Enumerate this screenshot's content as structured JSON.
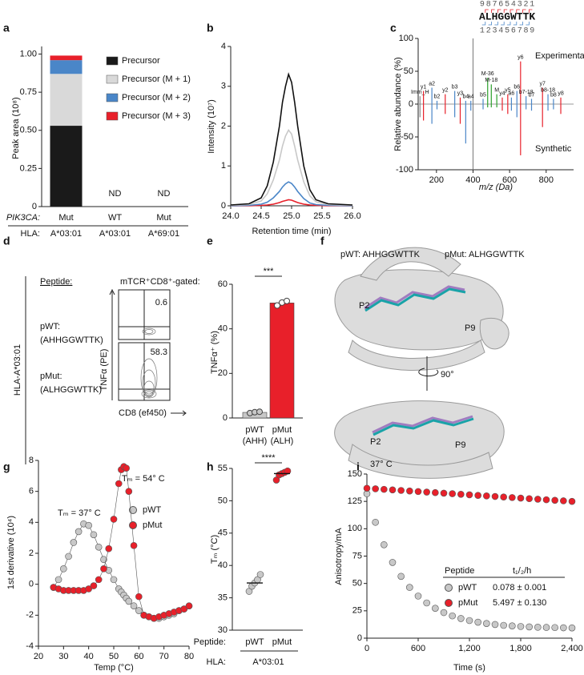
{
  "chart_data": [
    {
      "type": "stacked_bar",
      "panel": "a",
      "ylabel": "Peak area (10⁸)",
      "ylim": [
        0,
        1.05
      ],
      "yticks": [
        0,
        0.25,
        {
          "value": 0.5,
          "label": "0.50"
        },
        0.75,
        {
          "value": 1,
          "label": "1.00"
        }
      ],
      "categories": [
        "Mut",
        "WT",
        "Mut"
      ],
      "category_notes": [
        null,
        "ND",
        "ND"
      ],
      "row_labels": [
        "PIK3CA:",
        "HLA:"
      ],
      "hla": [
        "A*03:01",
        "A*03:01",
        "A*69:01"
      ],
      "series": [
        {
          "name": "Precursor",
          "color": "#1a1a1a",
          "values": [
            0.53,
            null,
            null
          ]
        },
        {
          "name": "Precursor (M + 1)",
          "color": "#d9d9d9",
          "values": [
            0.34,
            null,
            null
          ]
        },
        {
          "name": "Precursor (M + 2)",
          "color": "#4a86c8",
          "values": [
            0.09,
            null,
            null
          ]
        },
        {
          "name": "Precursor (M + 3)",
          "color": "#e8202a",
          "values": [
            0.03,
            null,
            null
          ]
        }
      ]
    },
    {
      "type": "line",
      "panel": "b",
      "ylabel": "Intensity (10⁷)",
      "xlabel": "Retention time (min)",
      "xlim": [
        24,
        26
      ],
      "xticks": [
        {
          "value": 24,
          "label": "24.0"
        },
        24.5,
        {
          "value": 25,
          "label": "25.0"
        },
        25.5,
        {
          "value": 26,
          "label": "26.0"
        }
      ],
      "ylim": [
        0,
        4
      ],
      "yticks": [
        0,
        1,
        2,
        3,
        4
      ],
      "x": [
        24.0,
        24.3,
        24.5,
        24.6,
        24.7,
        24.8,
        24.85,
        24.9,
        24.95,
        25.0,
        25.05,
        25.1,
        25.2,
        25.3,
        25.4,
        25.6,
        26.0
      ],
      "series": [
        {
          "color": "#111111",
          "values": [
            0.02,
            0.05,
            0.2,
            0.5,
            1.1,
            2.0,
            2.6,
            3.0,
            3.3,
            3.1,
            2.6,
            2.0,
            1.0,
            0.4,
            0.15,
            0.05,
            0.02
          ]
        },
        {
          "color": "#c8c8c8",
          "values": [
            0.01,
            0.03,
            0.12,
            0.3,
            0.65,
            1.15,
            1.5,
            1.75,
            1.9,
            1.8,
            1.5,
            1.15,
            0.6,
            0.25,
            0.1,
            0.03,
            0.01
          ]
        },
        {
          "color": "#4a86c8",
          "values": [
            0,
            0.01,
            0.04,
            0.09,
            0.2,
            0.36,
            0.47,
            0.55,
            0.6,
            0.56,
            0.47,
            0.36,
            0.18,
            0.07,
            0.03,
            0.01,
            0
          ]
        },
        {
          "color": "#e8202a",
          "values": [
            0,
            0,
            0.01,
            0.02,
            0.04,
            0.08,
            0.11,
            0.13,
            0.15,
            0.14,
            0.11,
            0.08,
            0.04,
            0.02,
            0.01,
            0,
            0
          ]
        }
      ]
    },
    {
      "type": "mirror_spectrum",
      "panel": "c",
      "ylabel": "Relative abundance (%)",
      "xlabel": "m/z (Da)",
      "xlim": [
        100,
        950
      ],
      "xticks": [
        200,
        400,
        600,
        800
      ],
      "ylim": [
        -100,
        100
      ],
      "yticks": [
        -100,
        -50,
        0,
        50,
        100
      ],
      "top_label": "Experimental",
      "bottom_label": "Synthetic",
      "sequence": "ALHGGWTTK",
      "sequence_top_numbers": [
        9,
        8,
        7,
        6,
        5,
        4,
        3,
        2,
        1
      ],
      "sequence_bottom_numbers": [
        1,
        2,
        3,
        4,
        5,
        6,
        7,
        8,
        9
      ],
      "precursor_line": 400,
      "x": [
        110,
        129,
        175,
        203,
        248,
        300,
        330,
        360,
        388,
        455,
        480,
        500,
        530,
        560,
        590,
        610,
        640,
        660,
        690,
        720,
        780,
        810,
        840,
        880
      ],
      "experimental": [
        12,
        20,
        25,
        5,
        15,
        20,
        10,
        5,
        5,
        8,
        40,
        30,
        15,
        10,
        15,
        10,
        20,
        65,
        12,
        8,
        25,
        15,
        8,
        10
      ],
      "synthetic": [
        -20,
        -25,
        -30,
        -8,
        -15,
        -20,
        -30,
        -60,
        -10,
        -8,
        -5,
        -5,
        -5,
        -10,
        -15,
        -10,
        -20,
        -78,
        -8,
        -10,
        -35,
        -10,
        -8,
        -15
      ],
      "peak_labels": [
        "Imm_H",
        "y1",
        "a2",
        "b2",
        "y2",
        "b3",
        "y3",
        "b4",
        "a4",
        "b5",
        "M-36",
        "M-18",
        "M",
        "y4",
        "y5",
        "a6",
        "b6",
        "y6",
        "b7-18",
        "b7",
        "y7",
        "b8-18",
        "b8",
        "y8"
      ],
      "colors": [
        "#888888",
        "#e8202a",
        "#4a86c8",
        "#4a86c8",
        "#e8202a",
        "#4a86c8",
        "#e8202a",
        "#4a86c8",
        "#4a86c8",
        "#4a86c8",
        "#2ca02c",
        "#2ca02c",
        "#2ca02c",
        "#e8202a",
        "#e8202a",
        "#4a86c8",
        "#4a86c8",
        "#e8202a",
        "#4a86c8",
        "#4a86c8",
        "#e8202a",
        "#4a86c8",
        "#4a86c8",
        "#e8202a"
      ]
    },
    {
      "type": "flow_cytometry",
      "panel": "d",
      "hla": "HLA-A*03:01",
      "peptide_header": "Peptide:",
      "gate_header": "mTCR⁺CD8⁺-gated:",
      "rows": [
        {
          "name": "pWT:",
          "sequence": "(AHHGGWTTK)",
          "percent": 0.6
        },
        {
          "name": "pMut:",
          "sequence": "(ALHGGWTTK)",
          "percent": 58.3
        }
      ],
      "ylabel": "TNFα (PE)",
      "xlabel": "CD8 (ef450)"
    },
    {
      "type": "bar_dot",
      "panel": "e",
      "ylabel": "TNFα⁺ (%)",
      "ylim": [
        0,
        60
      ],
      "yticks": [
        0,
        20,
        40,
        60
      ],
      "categories": [
        "pWT",
        "pMut"
      ],
      "category_sublabels": [
        "(AHH)",
        "(ALH)"
      ],
      "colors": [
        "#c8c8c8",
        "#e8202a"
      ],
      "values": [
        2.5,
        51.6
      ],
      "points": [
        [
          2.2,
          2.6,
          2.8
        ],
        [
          50.5,
          51.8,
          52.5
        ]
      ],
      "significance": "***"
    },
    {
      "type": "structure",
      "panel": "f",
      "legend": [
        "pWT: AHHGGWTTK",
        "pMut: ALHGGWTTK"
      ],
      "legend_colors": [
        "#a07cc0",
        "#1aa3a8"
      ],
      "top_view_labels": [
        "P2",
        "P9"
      ],
      "side_view_labels": [
        "P2",
        "P9"
      ],
      "rotation": "90°"
    },
    {
      "type": "scatter_line",
      "panel": "g",
      "ylabel": "1st derivative (10⁴)",
      "xlabel": "Temp (°C)",
      "xlim": [
        20,
        80
      ],
      "xticks": [
        20,
        30,
        40,
        50,
        60,
        70,
        80
      ],
      "ylim": [
        -4,
        8
      ],
      "yticks": [
        -4,
        -2,
        0,
        2,
        4,
        6,
        8
      ],
      "annotations": [
        "Tₘ = 37° C",
        "Tₘ = 54° C"
      ],
      "x": [
        26,
        28,
        30,
        32,
        34,
        36,
        38,
        40,
        42,
        44,
        46,
        48,
        50,
        52,
        53,
        54,
        55,
        56,
        58,
        60,
        62,
        64,
        66,
        68,
        70,
        72,
        74,
        76,
        78,
        80
      ],
      "series": [
        {
          "name": "pWT",
          "color": "#c8c8c8",
          "values": [
            -0.2,
            0.3,
            1.0,
            1.8,
            2.7,
            3.4,
            3.9,
            3.8,
            3.2,
            2.4,
            1.6,
            0.9,
            0.3,
            -0.3,
            -0.5,
            -0.7,
            -0.9,
            -1.1,
            -1.4,
            -1.7,
            -2.0,
            -2.1,
            -2.2,
            -2.2,
            -2.1,
            -2.0,
            -1.9,
            -1.7,
            -1.6,
            -1.4
          ]
        },
        {
          "name": "pMut",
          "color": "#e8202a",
          "values": [
            -0.2,
            -0.3,
            -0.4,
            -0.4,
            -0.4,
            -0.4,
            -0.4,
            -0.3,
            -0.1,
            0.3,
            1.0,
            2.3,
            4.2,
            6.5,
            7.4,
            7.6,
            7.5,
            6.0,
            2.5,
            -0.8,
            -2.0,
            -2.1,
            -2.2,
            -2.1,
            -2.0,
            -1.9,
            -1.8,
            -1.7,
            -1.6,
            -1.4
          ]
        }
      ]
    },
    {
      "type": "dot",
      "panel": "h",
      "ylabel": "Tₘ (°C)",
      "ylim": [
        30,
        55
      ],
      "yticks": [
        30,
        35,
        40,
        45,
        50,
        55
      ],
      "categories": [
        "pWT",
        "pMut"
      ],
      "colors": [
        "#c8c8c8",
        "#e8202a"
      ],
      "row_labels": [
        "Peptide:",
        "HLA:"
      ],
      "hla": "A*03:01",
      "values": [
        37.3,
        54.2
      ],
      "points": [
        [
          36.0,
          36.8,
          37.3,
          37.8,
          38.6
        ],
        [
          53.2,
          54.0,
          54.2,
          54.4,
          54.6
        ]
      ],
      "significance": "****"
    },
    {
      "type": "scatter_line",
      "panel": "i",
      "ylabel": "Anisotropy/mA",
      "xlabel": "Time (s)",
      "annotations": [
        "37° C"
      ],
      "xlim": [
        0,
        2400
      ],
      "xticks": [
        0,
        600,
        {
          "value": 1200,
          "label": "1,200"
        },
        {
          "value": 1800,
          "label": "1,800"
        },
        {
          "value": 2400,
          "label": "2,400"
        }
      ],
      "ylim": [
        0,
        150
      ],
      "yticks": [
        0,
        25,
        50,
        75,
        100,
        125,
        150
      ],
      "legend_header": [
        "Peptide",
        "t₁/₂/h"
      ],
      "x": [
        0,
        100,
        200,
        300,
        400,
        500,
        600,
        700,
        800,
        900,
        1000,
        1100,
        1200,
        1300,
        1400,
        1500,
        1600,
        1700,
        1800,
        1900,
        2000,
        2100,
        2200,
        2300,
        2400
      ],
      "series": [
        {
          "name": "pWT",
          "half_life": "0.078 ± 0.001",
          "color": "#c8c8c8",
          "values": [
            132,
            105.9,
            85.4,
            69.2,
            56.5,
            46.4,
            38.5,
            32.2,
            27.3,
            23.4,
            20.4,
            18.0,
            16.1,
            14.6,
            13.4,
            12.5,
            11.7,
            11.2,
            10.7,
            10.3,
            10.0,
            9.8,
            9.7,
            9.5,
            9.4
          ]
        },
        {
          "name": "pMut",
          "half_life": "5.497 ± 0.130",
          "color": "#e8202a",
          "values": [
            137,
            136.5,
            136,
            135.5,
            135,
            134.5,
            134,
            133.5,
            133,
            132.5,
            132,
            131.5,
            131,
            130.5,
            130,
            129.5,
            129,
            128.5,
            128,
            127.5,
            127,
            126.5,
            126,
            125.5,
            125
          ]
        }
      ]
    }
  ]
}
